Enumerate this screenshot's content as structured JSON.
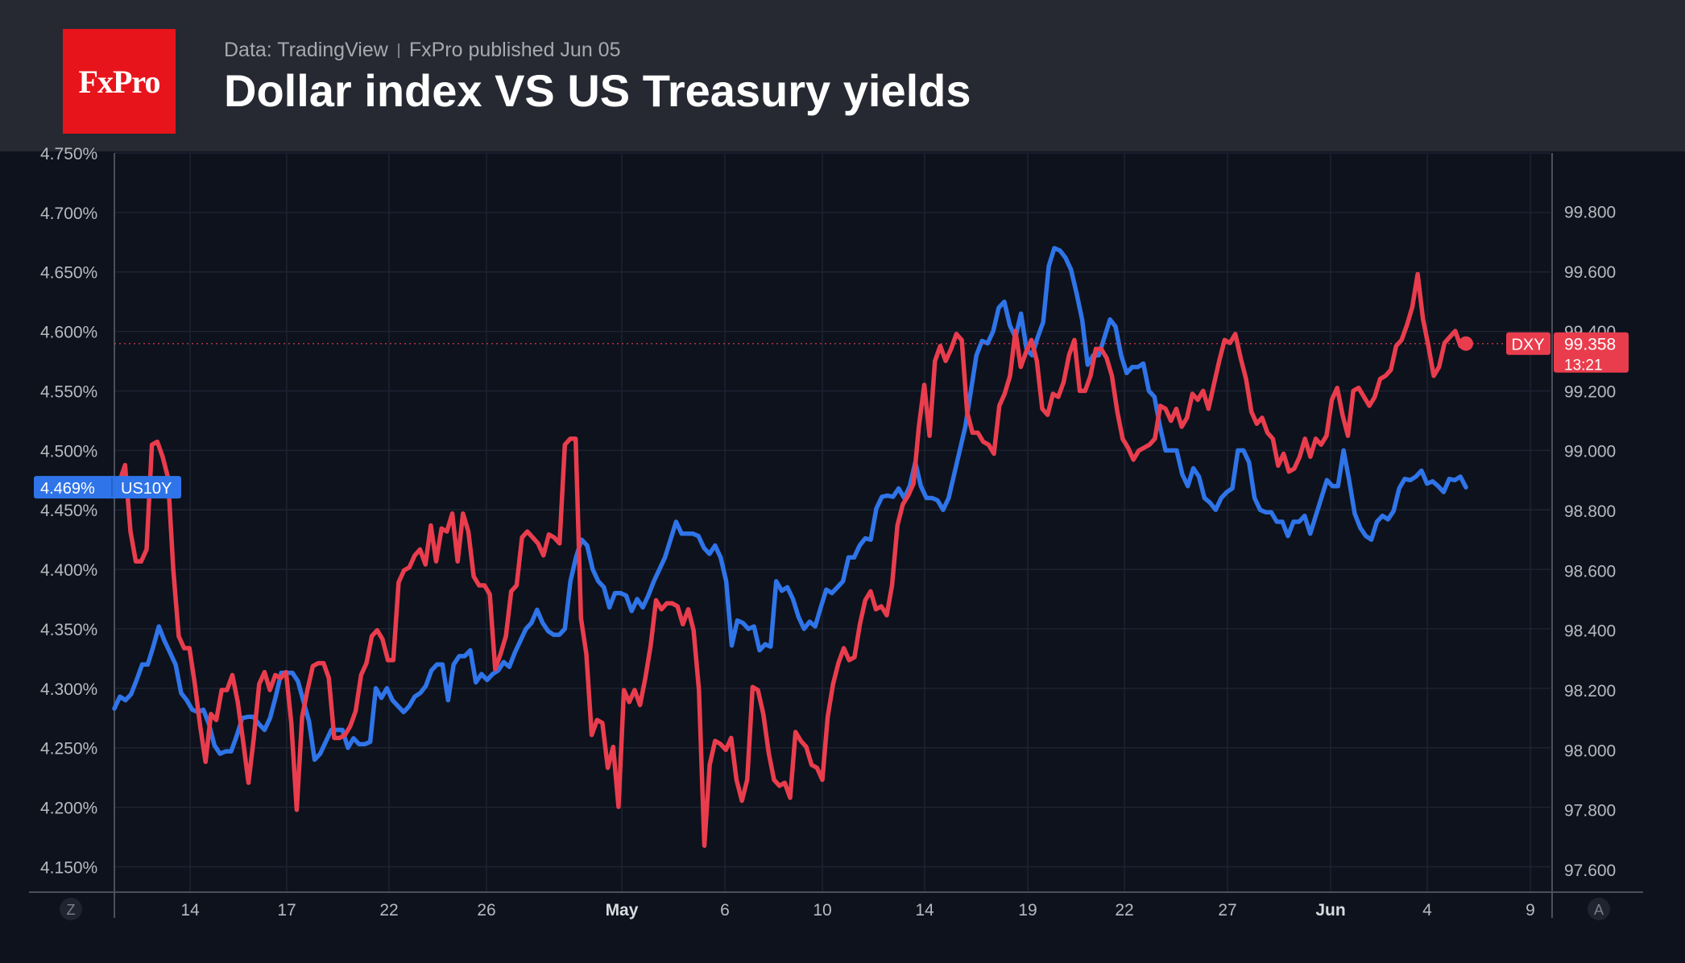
{
  "header": {
    "logo_text": "FxPro",
    "source": "Data: TradingView",
    "published": "FxPro published Jun 05",
    "title": "Dollar index VS US Treasury yields"
  },
  "chart_data": {
    "type": "line",
    "title": "Dollar index VS US Treasury yields",
    "x_tick_labels": [
      "14",
      "17",
      "22",
      "26",
      "May",
      "6",
      "10",
      "14",
      "19",
      "22",
      "27",
      "Jun",
      "4",
      "9"
    ],
    "y_left": {
      "ticks": [
        "4.750%",
        "4.700%",
        "4.650%",
        "4.600%",
        "4.550%",
        "4.500%",
        "4.450%",
        "4.400%",
        "4.350%",
        "4.300%",
        "4.250%",
        "4.200%",
        "4.150%"
      ],
      "range": [
        4.13,
        4.75
      ]
    },
    "y_right": {
      "ticks": [
        "99.800",
        "99.600",
        "99.400",
        "99.200",
        "99.000",
        "98.800",
        "98.600",
        "98.400",
        "98.200",
        "98.000",
        "97.800",
        "97.600"
      ],
      "range": [
        97.53,
        99.995
      ]
    },
    "corner_buttons": {
      "left": "Z",
      "right": "A"
    },
    "grid": true,
    "series": [
      {
        "name": "US10Y",
        "axis": "left",
        "color": "#2f74e8",
        "last_label": "4.469%",
        "values": [
          4.283,
          4.293,
          4.29,
          4.295,
          4.307,
          4.32,
          4.32,
          4.335,
          4.352,
          4.34,
          4.33,
          4.32,
          4.296,
          4.29,
          4.282,
          4.28,
          4.282,
          4.27,
          4.252,
          4.245,
          4.247,
          4.247,
          4.26,
          4.275,
          4.276,
          4.276,
          4.27,
          4.265,
          4.275,
          4.293,
          4.313,
          4.313,
          4.313,
          4.306,
          4.289,
          4.272,
          4.24,
          4.245,
          4.255,
          4.265,
          4.265,
          4.265,
          4.25,
          4.258,
          4.253,
          4.253,
          4.255,
          4.3,
          4.292,
          4.3,
          4.29,
          4.285,
          4.28,
          4.285,
          4.293,
          4.296,
          4.302,
          4.315,
          4.32,
          4.32,
          4.29,
          4.32,
          4.327,
          4.327,
          4.332,
          4.305,
          4.312,
          4.307,
          4.312,
          4.315,
          4.322,
          4.318,
          4.33,
          4.34,
          4.35,
          4.355,
          4.366,
          4.355,
          4.348,
          4.345,
          4.345,
          4.35,
          4.39,
          4.41,
          4.425,
          4.42,
          4.4,
          4.39,
          4.385,
          4.368,
          4.38,
          4.38,
          4.378,
          4.365,
          4.375,
          4.368,
          4.378,
          4.39,
          4.4,
          4.41,
          4.425,
          4.44,
          4.43,
          4.43,
          4.43,
          4.428,
          4.418,
          4.413,
          4.42,
          4.41,
          4.39,
          4.336,
          4.357,
          4.355,
          4.35,
          4.352,
          4.332,
          4.337,
          4.335,
          4.39,
          4.382,
          4.385,
          4.375,
          4.36,
          4.35,
          4.356,
          4.352,
          4.368,
          4.383,
          4.38,
          4.385,
          4.39,
          4.41,
          4.41,
          4.42,
          4.426,
          4.425,
          4.451,
          4.461,
          4.462,
          4.461,
          4.468,
          4.46,
          4.47,
          4.49,
          4.47,
          4.46,
          4.46,
          4.458,
          4.45,
          4.46,
          4.48,
          4.5,
          4.52,
          4.55,
          4.58,
          4.592,
          4.59,
          4.6,
          4.62,
          4.625,
          4.605,
          4.595,
          4.615,
          4.585,
          4.58,
          4.595,
          4.608,
          4.655,
          4.67,
          4.668,
          4.662,
          4.652,
          4.632,
          4.61,
          4.572,
          4.58,
          4.58,
          4.595,
          4.61,
          4.604,
          4.58,
          4.565,
          4.57,
          4.57,
          4.573,
          4.55,
          4.545,
          4.52,
          4.5,
          4.5,
          4.5,
          4.48,
          4.47,
          4.485,
          4.478,
          4.46,
          4.456,
          4.45,
          4.46,
          4.465,
          4.468,
          4.5,
          4.5,
          4.49,
          4.46,
          4.45,
          4.448,
          4.448,
          4.44,
          4.44,
          4.428,
          4.44,
          4.44,
          4.445,
          4.43,
          4.445,
          4.46,
          4.475,
          4.47,
          4.47,
          4.5,
          4.475,
          4.447,
          4.435,
          4.428,
          4.425,
          4.44,
          4.445,
          4.442,
          4.449,
          4.468,
          4.476,
          4.475,
          4.478,
          4.483,
          4.472,
          4.474,
          4.47,
          4.465,
          4.476,
          4.475,
          4.478,
          4.469
        ]
      },
      {
        "name": "DXY",
        "axis": "right",
        "color": "#e93d4d",
        "last_label": "99.358",
        "last_time": "13:21",
        "values": [
          98.85,
          98.9,
          98.952,
          98.73,
          98.63,
          98.63,
          98.67,
          99.02,
          99.03,
          98.98,
          98.91,
          98.6,
          98.38,
          98.34,
          98.34,
          98.22,
          98.08,
          97.96,
          98.12,
          98.1,
          98.2,
          98.2,
          98.25,
          98.16,
          98.03,
          97.89,
          98.04,
          98.22,
          98.26,
          98.2,
          98.25,
          98.24,
          98.26,
          98.09,
          97.8,
          98.11,
          98.2,
          98.28,
          98.29,
          98.29,
          98.24,
          98.04,
          98.04,
          98.05,
          98.08,
          98.13,
          98.25,
          98.29,
          98.38,
          98.4,
          98.37,
          98.3,
          98.3,
          98.56,
          98.6,
          98.61,
          98.65,
          98.67,
          98.62,
          98.75,
          98.63,
          98.74,
          98.73,
          98.79,
          98.63,
          98.79,
          98.73,
          98.58,
          98.55,
          98.55,
          98.52,
          98.27,
          98.32,
          98.38,
          98.53,
          98.55,
          98.71,
          98.73,
          98.71,
          98.69,
          98.65,
          98.72,
          98.71,
          98.69,
          99.02,
          99.04,
          99.04,
          98.44,
          98.32,
          98.05,
          98.1,
          98.09,
          97.94,
          98.01,
          97.81,
          98.2,
          98.16,
          98.2,
          98.15,
          98.24,
          98.35,
          98.5,
          98.47,
          98.49,
          98.49,
          98.48,
          98.42,
          98.47,
          98.4,
          98.2,
          97.68,
          97.95,
          98.03,
          98.02,
          98.0,
          98.04,
          97.9,
          97.83,
          97.9,
          98.21,
          98.2,
          98.12,
          97.99,
          97.9,
          97.88,
          97.89,
          97.84,
          98.06,
          98.03,
          98.01,
          97.95,
          97.94,
          97.9,
          98.11,
          98.22,
          98.29,
          98.34,
          98.3,
          98.31,
          98.42,
          98.5,
          98.53,
          98.47,
          98.48,
          98.45,
          98.55,
          98.75,
          98.82,
          98.85,
          98.89,
          99.08,
          99.22,
          99.05,
          99.3,
          99.35,
          99.3,
          99.34,
          99.39,
          99.37,
          99.13,
          99.06,
          99.06,
          99.03,
          99.02,
          98.99,
          99.15,
          99.19,
          99.25,
          99.4,
          99.28,
          99.33,
          99.37,
          99.3,
          99.14,
          99.12,
          99.19,
          99.18,
          99.23,
          99.32,
          99.37,
          99.2,
          99.2,
          99.25,
          99.34,
          99.34,
          99.31,
          99.25,
          99.13,
          99.04,
          99.01,
          98.97,
          99,
          99.01,
          99.02,
          99.04,
          99.15,
          99.14,
          99.1,
          99.14,
          99.08,
          99.11,
          99.19,
          99.17,
          99.2,
          99.14,
          99.22,
          99.3,
          99.37,
          99.36,
          99.39,
          99.31,
          99.24,
          99.13,
          99.09,
          99.11,
          99.06,
          99.04,
          98.95,
          98.99,
          98.93,
          98.94,
          98.98,
          99.04,
          98.98,
          99.04,
          99.02,
          99.05,
          99.17,
          99.21,
          99.12,
          99.05,
          99.2,
          99.21,
          99.18,
          99.15,
          99.18,
          99.24,
          99.25,
          99.27,
          99.35,
          99.37,
          99.42,
          99.48,
          99.59,
          99.44,
          99.35,
          99.25,
          99.28,
          99.36,
          99.38,
          99.4,
          99.35,
          99.358
        ]
      }
    ]
  }
}
